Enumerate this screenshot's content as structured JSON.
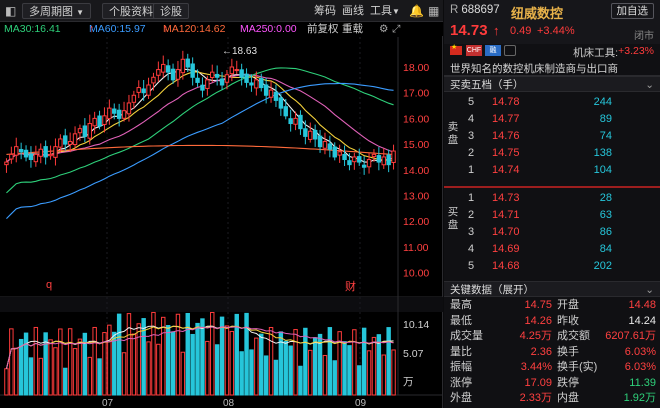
{
  "toolbar": {
    "period": "多周期图",
    "period_arrow": "▼",
    "profile": "个股资料",
    "diagnose": "诊股",
    "chips": "筹码",
    "draw": "画线",
    "tools": "工具",
    "tools_arrow": "▼",
    "bell": "🔔",
    "more": "▦"
  },
  "ma": {
    "ma30": "MA30:16.41",
    "ma60": "MA60:15.97",
    "ma60_arrow": "↑",
    "ma120": "MA120:14.62",
    "ma120_arrow": "↑",
    "ma250": "MA250:0.00",
    "adjust": "前复权",
    "overlay": "重载",
    "colors": {
      "ma30": "#2ed07a",
      "ma60": "#3b9cff",
      "ma120": "#ff6a3b",
      "ma250": "#ff55ff",
      "ma5": "#f0f0f0",
      "ma10": "#f2d03b",
      "ma20": "#e061b8"
    }
  },
  "price_axis": [
    "18.00",
    "17.00",
    "16.00",
    "15.00",
    "14.00",
    "13.00",
    "12.00",
    "11.00",
    "10.00"
  ],
  "high_marker": "←18.63",
  "markers": {
    "q": "q",
    "cai": "财"
  },
  "volume_axis": [
    "10.14",
    "5.07",
    "万"
  ],
  "time_axis": [
    "07",
    "08",
    "09"
  ],
  "stock": {
    "r_tag": "R",
    "code": "688697",
    "name": "纽威数控",
    "add": "加自选",
    "price": "14.73",
    "arrow": "↑",
    "change": "0.49",
    "change_pct": "+3.44%",
    "status": "闭市",
    "tag1": "CHF",
    "tag2": "融",
    "industry": "机床工具:",
    "industry_chg": "+3.23%",
    "desc": "世界知名的数控机床制造商与出口商"
  },
  "orderbook": {
    "title": "买卖五档（手）",
    "caret": "⌄",
    "sell_label": "卖盘",
    "buy_label": "买盘",
    "sell": [
      {
        "lvl": "5",
        "px": "14.78",
        "vol": "244"
      },
      {
        "lvl": "4",
        "px": "14.77",
        "vol": "89"
      },
      {
        "lvl": "3",
        "px": "14.76",
        "vol": "74"
      },
      {
        "lvl": "2",
        "px": "14.75",
        "vol": "138"
      },
      {
        "lvl": "1",
        "px": "14.74",
        "vol": "104"
      }
    ],
    "buy": [
      {
        "lvl": "1",
        "px": "14.73",
        "vol": "28"
      },
      {
        "lvl": "2",
        "px": "14.71",
        "vol": "63"
      },
      {
        "lvl": "3",
        "px": "14.70",
        "vol": "86"
      },
      {
        "lvl": "4",
        "px": "14.69",
        "vol": "84"
      },
      {
        "lvl": "5",
        "px": "14.68",
        "vol": "202"
      }
    ]
  },
  "keydata": {
    "title": "关键数据（展开）",
    "caret": "⌄",
    "rows": [
      {
        "l1": "最高",
        "v1": "14.75",
        "c1": "red",
        "l2": "开盘",
        "v2": "14.48",
        "c2": "red"
      },
      {
        "l1": "最低",
        "v1": "14.26",
        "c1": "red",
        "l2": "昨收",
        "v2": "14.24",
        "c2": "white"
      },
      {
        "l1": "成交量",
        "v1": "4.25万",
        "c1": "red",
        "l2": "成交额",
        "v2": "6207.61万",
        "c2": "red"
      },
      {
        "l1": "量比",
        "v1": "2.36",
        "c1": "red",
        "l2": "换手",
        "v2": "6.03%",
        "c2": "red"
      },
      {
        "l1": "振幅",
        "v1": "3.44%",
        "c1": "red",
        "l2": "换手(实)",
        "v2": "6.03%",
        "c2": "red"
      },
      {
        "l1": "涨停",
        "v1": "17.09",
        "c1": "red",
        "l2": "跌停",
        "v2": "11.39",
        "c2": "green"
      },
      {
        "l1": "外盘",
        "v1": "2.33万",
        "c1": "red",
        "l2": "内盘",
        "v2": "1.92万",
        "c2": "green"
      }
    ]
  }
}
